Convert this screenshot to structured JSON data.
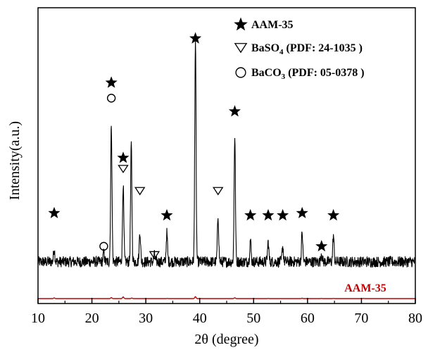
{
  "chart_data": {
    "type": "line",
    "title": "",
    "xlabel": "2θ (degree)",
    "ylabel": "Intensity(a.u.)",
    "xlim": [
      10,
      80
    ],
    "xticks": [
      10,
      20,
      30,
      40,
      50,
      60,
      70,
      80
    ],
    "xtick_labels": [
      "10",
      "20",
      "30",
      "40",
      "50",
      "60",
      "70",
      "80"
    ],
    "yticks_shown": false,
    "legend": {
      "placement": "top-right",
      "entries": [
        {
          "symbol": "star",
          "label": "AAM-35",
          "sub": "",
          "tail": ""
        },
        {
          "symbol": "triangle-down",
          "label": "BaSO",
          "sub": "4",
          "tail": " (PDF: 24-1035 )"
        },
        {
          "symbol": "circle",
          "label": "BaCO",
          "sub": "3",
          "tail": " (PDF: 05-0378 )"
        }
      ]
    },
    "series": [
      {
        "name": "",
        "color": "#000000",
        "noisy": true,
        "baseline": 0.09,
        "noise": 0.025,
        "peaks": [
          [
            13.0,
            0.06
          ],
          [
            22.2,
            0.04
          ],
          [
            23.6,
            0.63
          ],
          [
            25.8,
            0.35
          ],
          [
            27.3,
            0.53
          ],
          [
            28.9,
            0.14
          ],
          [
            31.6,
            0.03
          ],
          [
            33.9,
            0.13
          ],
          [
            39.2,
            1.0
          ],
          [
            43.4,
            0.21
          ],
          [
            46.5,
            0.57
          ],
          [
            49.4,
            0.1
          ],
          [
            52.7,
            0.09
          ],
          [
            55.4,
            0.07
          ],
          [
            59.0,
            0.13
          ],
          [
            62.6,
            0.04
          ],
          [
            64.8,
            0.12
          ]
        ]
      },
      {
        "name": "AAM-35",
        "color": "#c00000",
        "noisy": false,
        "baseline": 0.0,
        "peaks": [
          [
            13.0,
            0.035
          ],
          [
            23.6,
            0.05
          ],
          [
            25.8,
            0.09
          ],
          [
            27.4,
            0.03
          ],
          [
            34.0,
            0.01
          ],
          [
            39.2,
            0.1
          ],
          [
            46.5,
            0.04
          ],
          [
            52.7,
            0.01
          ],
          [
            59.0,
            0.02
          ],
          [
            62.6,
            0.01
          ],
          [
            64.8,
            0.01
          ],
          [
            70.4,
            0.01
          ]
        ]
      }
    ],
    "markers": [
      {
        "symbol": "star",
        "x": 13.0,
        "height": 0.31
      },
      {
        "symbol": "circle",
        "x": 22.2,
        "height": 0.16
      },
      {
        "symbol": "circle",
        "x": 23.6,
        "height": 0.83
      },
      {
        "symbol": "star",
        "x": 23.6,
        "height": 0.9
      },
      {
        "symbol": "star",
        "x": 25.8,
        "height": 0.56
      },
      {
        "symbol": "triangle-down",
        "x": 25.8,
        "height": 0.51
      },
      {
        "symbol": "triangle-down",
        "x": 28.9,
        "height": 0.41
      },
      {
        "symbol": "triangle-down",
        "x": 31.6,
        "height": 0.12
      },
      {
        "symbol": "star",
        "x": 33.9,
        "height": 0.3
      },
      {
        "symbol": "star",
        "x": 39.2,
        "height": 1.1
      },
      {
        "symbol": "triangle-down",
        "x": 43.4,
        "height": 0.41
      },
      {
        "symbol": "star",
        "x": 46.5,
        "height": 0.77
      },
      {
        "symbol": "star",
        "x": 49.4,
        "height": 0.3
      },
      {
        "symbol": "star",
        "x": 52.7,
        "height": 0.3
      },
      {
        "symbol": "star",
        "x": 55.4,
        "height": 0.3
      },
      {
        "symbol": "star",
        "x": 59.0,
        "height": 0.31
      },
      {
        "symbol": "star",
        "x": 62.6,
        "height": 0.16
      },
      {
        "symbol": "star",
        "x": 64.8,
        "height": 0.3
      }
    ]
  }
}
